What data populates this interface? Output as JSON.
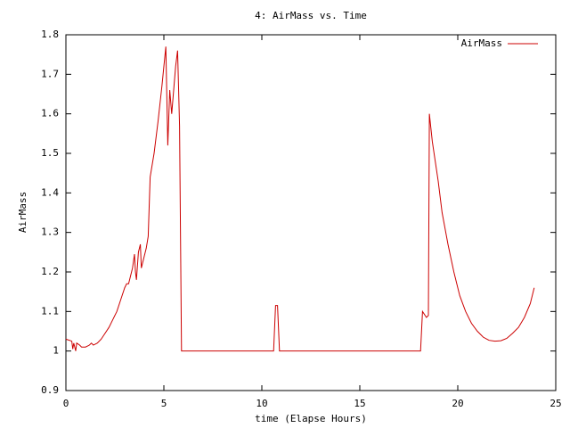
{
  "chart_data": {
    "type": "line",
    "title": "4: AirMass vs. Time",
    "x_label": "time (Elapse Hours)",
    "y_label": "AirMass",
    "legend": "top-right",
    "grid": false,
    "xlim": [
      0,
      25
    ],
    "xticks": [
      0,
      5,
      10,
      15,
      20,
      25
    ],
    "ylim": [
      0.9,
      1.8
    ],
    "yticks": [
      0.9,
      1,
      1.1,
      1.2,
      1.3,
      1.4,
      1.5,
      1.6,
      1.7,
      1.8
    ],
    "x": [
      0,
      0.3,
      0.35,
      0.4,
      0.5,
      0.55,
      0.7,
      0.8,
      1.0,
      1.2,
      1.3,
      1.4,
      1.6,
      1.8,
      2.0,
      2.2,
      2.4,
      2.6,
      2.8,
      3.0,
      3.1,
      3.2,
      3.3,
      3.4,
      3.5,
      3.55,
      3.6,
      3.7,
      3.8,
      3.85,
      4.0,
      4.1,
      4.2,
      4.3,
      4.5,
      4.7,
      4.9,
      5.0,
      5.1,
      5.2,
      5.3,
      5.4,
      5.5,
      5.6,
      5.7,
      5.8,
      5.9,
      10.6,
      10.7,
      10.8,
      10.9,
      18.1,
      18.2,
      18.4,
      18.5,
      18.55,
      18.7,
      19.0,
      19.2,
      19.5,
      19.8,
      20.1,
      20.4,
      20.7,
      21.0,
      21.3,
      21.6,
      21.9,
      22.2,
      22.5,
      22.8,
      23.1,
      23.4,
      23.7,
      23.9
    ],
    "series": [
      {
        "name": "AirMass",
        "color": "#cc0000",
        "values": [
          1.03,
          1.025,
          1.005,
          1.02,
          1.0,
          1.02,
          1.015,
          1.01,
          1.01,
          1.015,
          1.02,
          1.015,
          1.02,
          1.03,
          1.045,
          1.06,
          1.08,
          1.1,
          1.13,
          1.16,
          1.17,
          1.17,
          1.19,
          1.21,
          1.245,
          1.2,
          1.18,
          1.25,
          1.27,
          1.21,
          1.24,
          1.26,
          1.29,
          1.44,
          1.5,
          1.58,
          1.67,
          1.72,
          1.77,
          1.52,
          1.66,
          1.6,
          1.66,
          1.72,
          1.76,
          1.57,
          1.0,
          1.0,
          1.115,
          1.115,
          1.0,
          1.0,
          1.1,
          1.085,
          1.09,
          1.6,
          1.53,
          1.43,
          1.35,
          1.27,
          1.2,
          1.14,
          1.1,
          1.07,
          1.05,
          1.035,
          1.027,
          1.025,
          1.026,
          1.032,
          1.045,
          1.06,
          1.085,
          1.12,
          1.16
        ]
      }
    ]
  }
}
